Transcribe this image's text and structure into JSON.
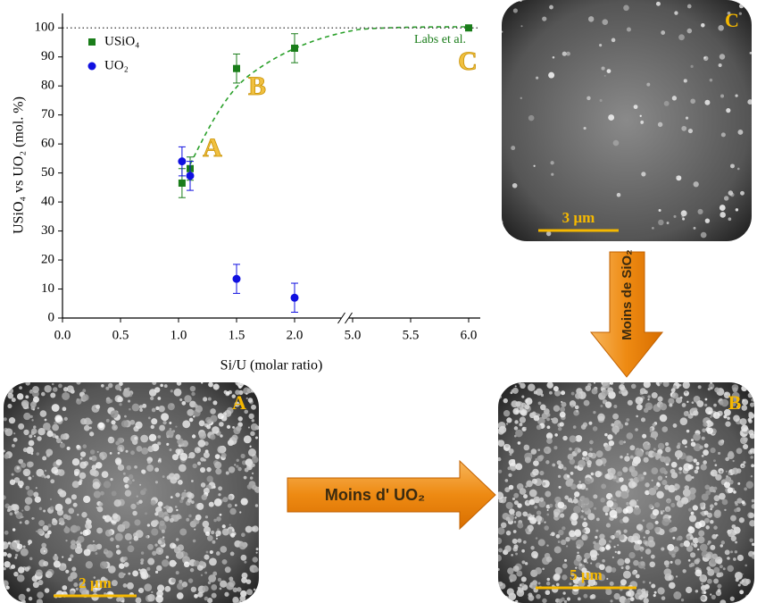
{
  "chart_data": {
    "type": "scatter",
    "xlabel": "Si/U (molar ratio)",
    "ylabel": "USiO₄ vs UO₂ (mol. %)",
    "xlim": [
      0,
      6.1
    ],
    "xticks": [
      {
        "value": 0,
        "label": "0.0"
      },
      {
        "value": 0.5,
        "label": "0.5"
      },
      {
        "value": 1,
        "label": "1.0"
      },
      {
        "value": 1.5,
        "label": "1.5"
      },
      {
        "value": 2,
        "label": "2.0"
      },
      {
        "value": 5,
        "label": "5.0"
      },
      {
        "value": 5.5,
        "label": "5.5"
      },
      {
        "value": 6,
        "label": "6.0"
      }
    ],
    "ylim": [
      0,
      105
    ],
    "yticks": [
      0,
      10,
      20,
      30,
      40,
      50,
      60,
      70,
      80,
      90,
      100
    ],
    "reference_line": 100,
    "series": [
      {
        "name": "USiO₄",
        "color": "#1a7d1a",
        "marker": "square",
        "x": [
          1.03,
          1.1,
          1.5,
          2.0,
          6.0
        ],
        "values": [
          46.5,
          51.5,
          86,
          93,
          100
        ],
        "errors": [
          5,
          4,
          5,
          5,
          null
        ]
      },
      {
        "name": "UO₂",
        "color": "#1010e0",
        "marker": "circle",
        "x": [
          1.03,
          1.1,
          1.5,
          2.0
        ],
        "values": [
          54,
          49,
          13.5,
          7
        ],
        "errors": [
          5,
          5,
          5,
          5
        ]
      }
    ],
    "annotations": [
      "Labs et al.",
      "A",
      "B",
      "C"
    ]
  },
  "images": [
    {
      "label": "C",
      "scale_bar": "3 µm"
    },
    {
      "label": "A",
      "scale_bar": "2 µm"
    },
    {
      "label": "B",
      "scale_bar": "5 µm"
    }
  ],
  "arrows": [
    "Moins de SiO₂",
    "Moins d' UO₂"
  ]
}
